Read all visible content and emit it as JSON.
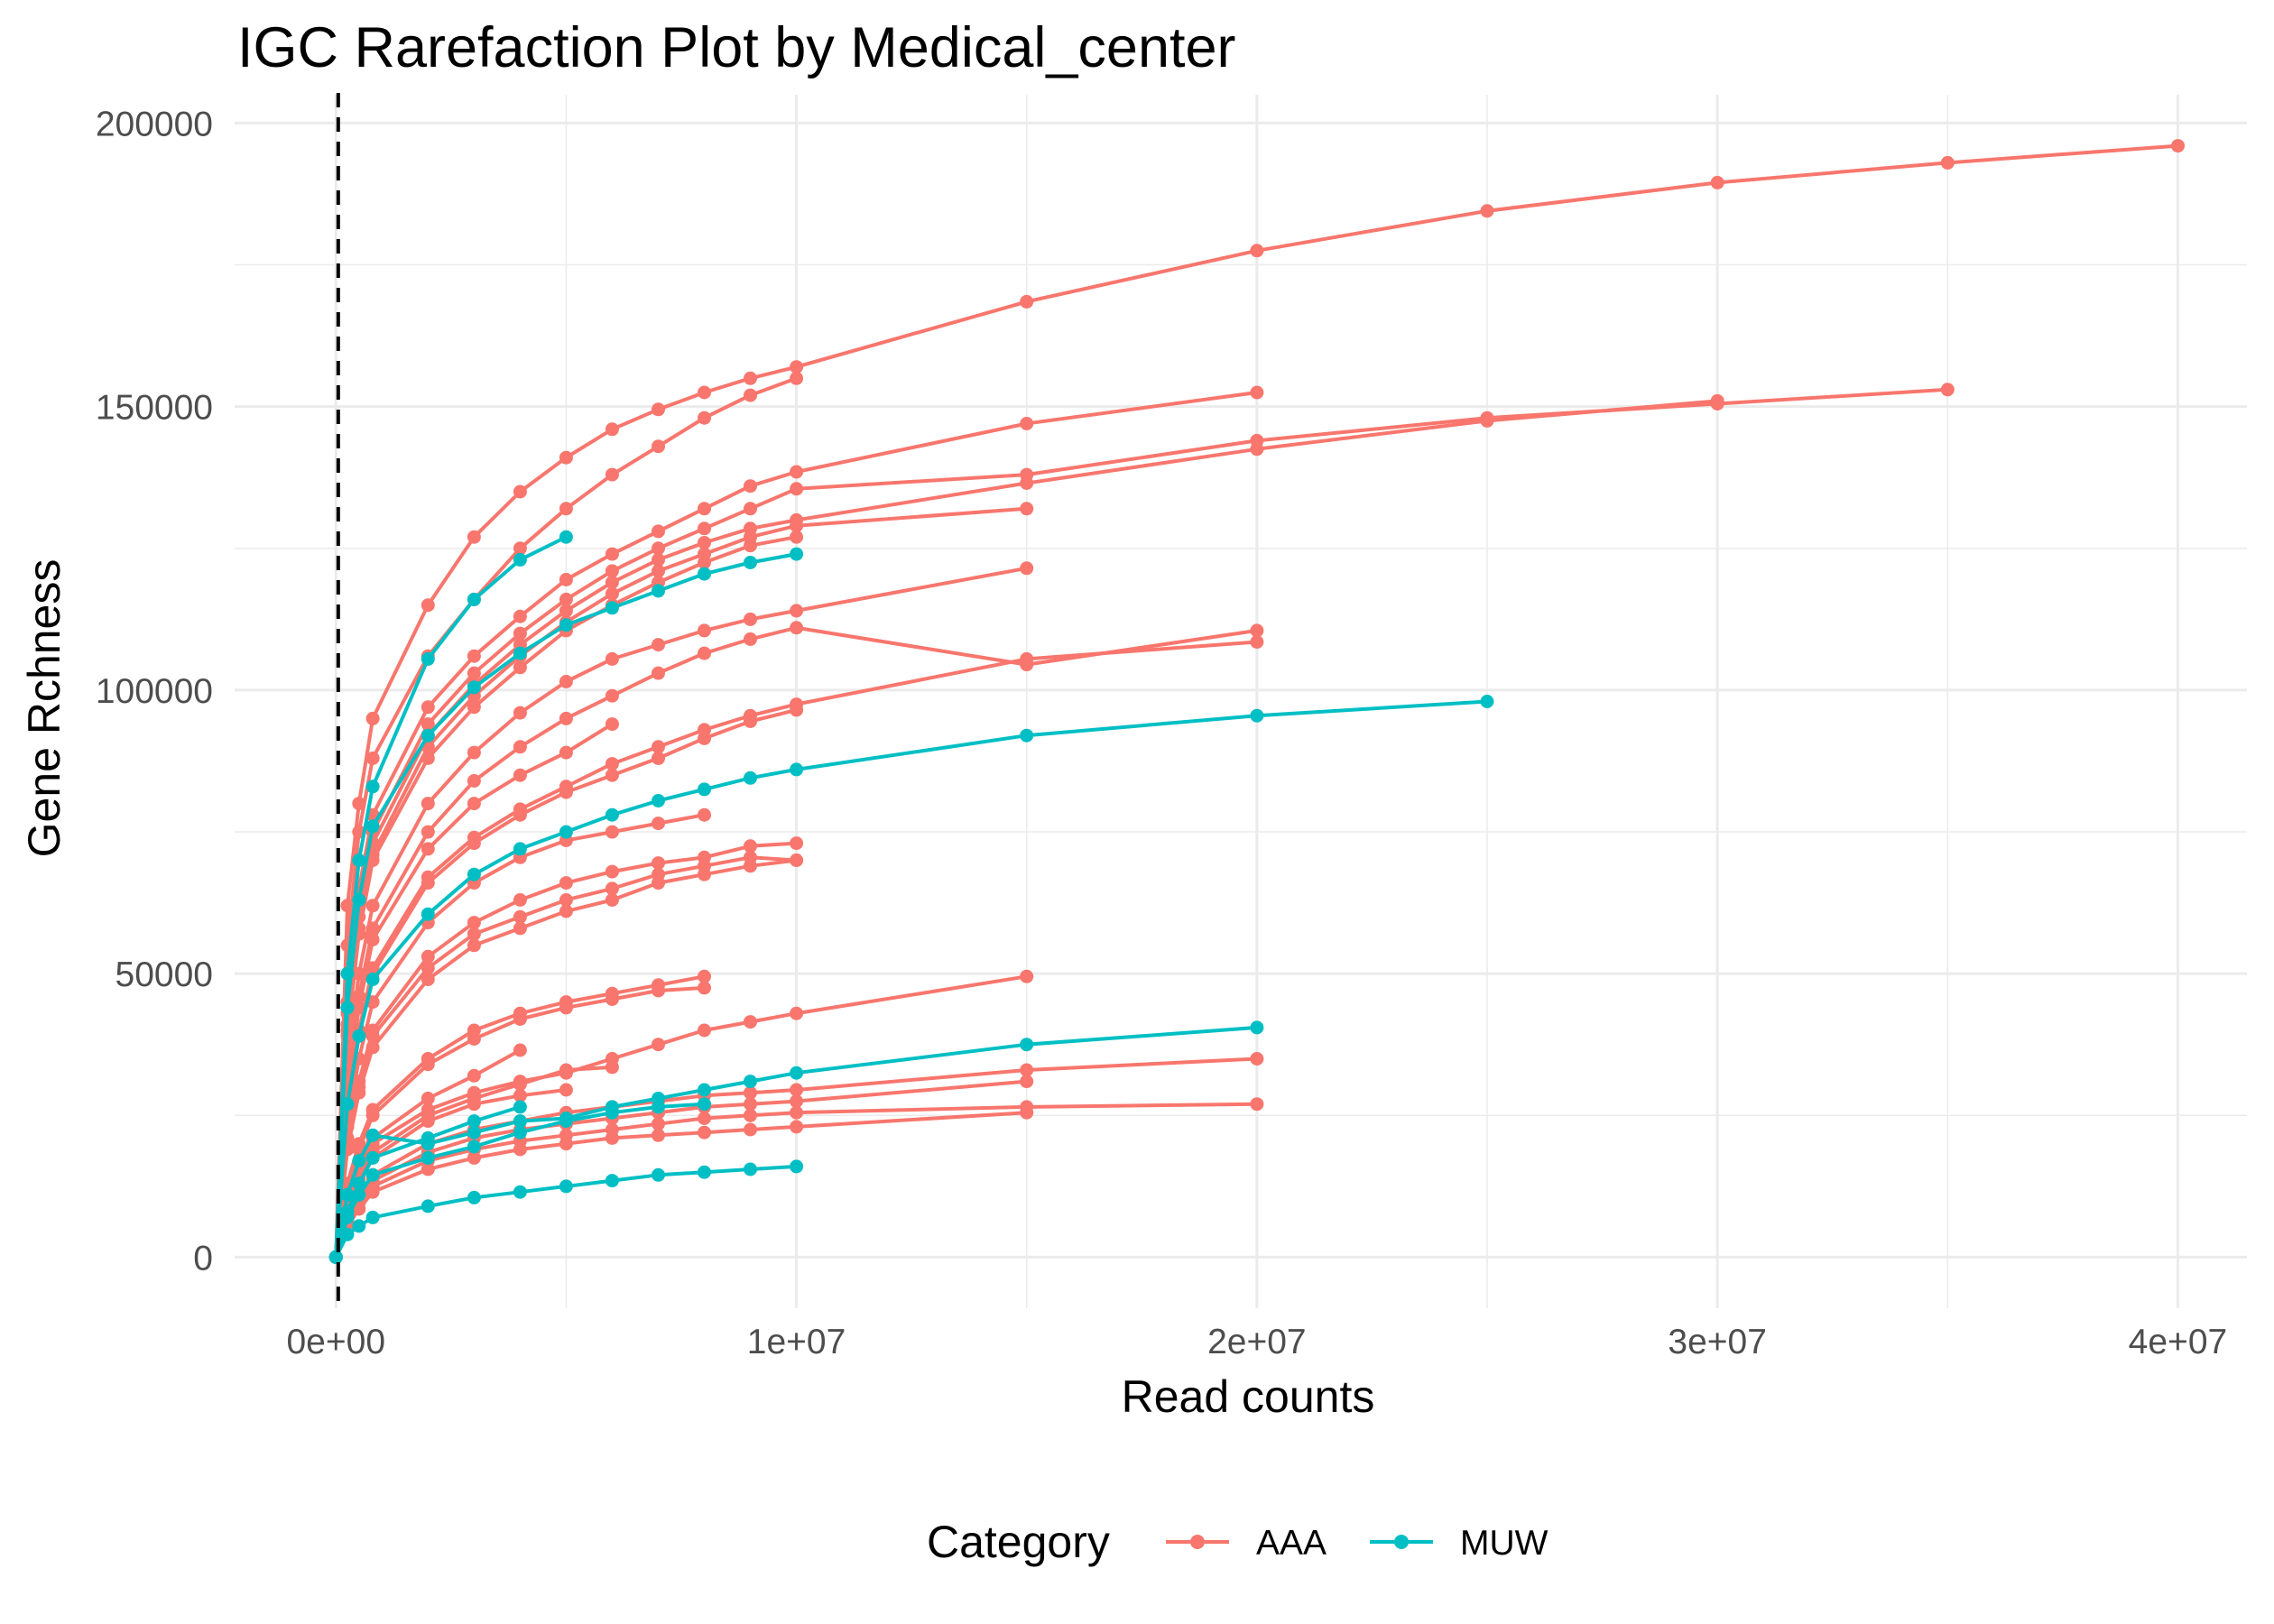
{
  "chart_data": {
    "type": "line",
    "title": "IGC Rarefaction Plot by Medical_center",
    "xlabel": "Read counts",
    "ylabel": "Gene Rchness",
    "xlim": [
      -2200000,
      41500000
    ],
    "ylim": [
      -9000,
      205000
    ],
    "x_ticks": [
      0,
      10000000,
      20000000,
      30000000,
      40000000
    ],
    "x_tick_labels": [
      "0e+00",
      "1e+07",
      "2e+07",
      "3e+07",
      "4e+07"
    ],
    "y_ticks": [
      0,
      50000,
      100000,
      150000,
      200000
    ],
    "y_tick_labels": [
      "0",
      "50000",
      "100000",
      "150000",
      "200000"
    ],
    "reference_line_x": 50000,
    "grid": true,
    "legend": {
      "title": "Category",
      "position": "bottom",
      "entries": [
        {
          "label": "AAA",
          "color": "#F8766D"
        },
        {
          "label": "MUW",
          "color": "#00BFC4"
        }
      ]
    },
    "series": [
      {
        "group": "AAA",
        "x": [
          0,
          250000,
          500000,
          800000,
          2000000,
          3000000,
          4000000,
          5000000,
          6000000,
          7000000,
          8000000,
          9000000,
          10000000,
          15000000,
          20000000,
          25000000,
          30000000,
          35000000,
          40000000
        ],
        "y": [
          0,
          62000,
          80000,
          95000,
          115000,
          127000,
          135000,
          141000,
          146000,
          149500,
          152500,
          155000,
          157000,
          168500,
          177500,
          184500,
          189500,
          193000,
          196000
        ]
      },
      {
        "group": "AAA",
        "x": [
          0,
          250000,
          500000,
          800000,
          2000000,
          3000000,
          4000000,
          5000000,
          6000000,
          7000000,
          8000000,
          9000000,
          10000000
        ],
        "y": [
          0,
          55000,
          75000,
          88000,
          106000,
          116000,
          125000,
          132000,
          138000,
          143000,
          148000,
          152000,
          155000
        ]
      },
      {
        "group": "AAA",
        "x": [
          0,
          250000,
          500000,
          800000,
          2000000,
          3000000,
          4000000,
          5000000,
          6000000,
          7000000,
          8000000,
          9000000,
          10000000,
          15000000,
          20000000
        ],
        "y": [
          0,
          45000,
          65000,
          78000,
          97000,
          106000,
          113000,
          119500,
          124000,
          128000,
          132000,
          136000,
          138500,
          147000,
          152500
        ]
      },
      {
        "group": "AAA",
        "x": [
          0,
          250000,
          500000,
          800000,
          2000000,
          3000000,
          4000000,
          5000000,
          6000000,
          7000000,
          8000000,
          9000000,
          10000000,
          15000000,
          20000000,
          25000000,
          30000000,
          35000000
        ],
        "y": [
          0,
          43000,
          62000,
          75000,
          94000,
          103000,
          110000,
          116000,
          121000,
          125000,
          128500,
          132000,
          135500,
          138000,
          144000,
          148000,
          150500,
          153000
        ]
      },
      {
        "group": "AAA",
        "x": [
          0,
          250000,
          500000,
          800000,
          2000000,
          3000000,
          4000000,
          5000000,
          6000000,
          7000000,
          8000000,
          9000000,
          10000000,
          15000000,
          20000000,
          25000000,
          30000000
        ],
        "y": [
          0,
          41000,
          60000,
          73000,
          92000,
          101000,
          108000,
          114000,
          119000,
          123000,
          126000,
          128500,
          130000,
          136500,
          142500,
          147500,
          151000
        ]
      },
      {
        "group": "AAA",
        "x": [
          0,
          250000,
          500000,
          800000,
          2000000,
          3000000,
          4000000,
          5000000,
          6000000,
          7000000,
          8000000,
          9000000,
          10000000,
          15000000
        ],
        "y": [
          0,
          40000,
          58000,
          71000,
          90000,
          99000,
          106000,
          112000,
          117000,
          121000,
          124000,
          127000,
          129000,
          132000
        ]
      },
      {
        "group": "AAA",
        "x": [
          0,
          250000,
          500000,
          800000,
          2000000,
          3000000,
          4000000,
          5000000,
          6000000,
          7000000,
          8000000,
          9000000,
          10000000
        ],
        "y": [
          0,
          39000,
          57000,
          70000,
          88000,
          97000,
          104000,
          110500,
          115000,
          119000,
          122500,
          125500,
          127000
        ]
      },
      {
        "group": "AAA",
        "x": [
          0,
          250000,
          500000,
          800000,
          2000000,
          3000000,
          4000000,
          5000000,
          6000000,
          7000000,
          8000000,
          9000000,
          10000000,
          15000000
        ],
        "y": [
          0,
          34000,
          50000,
          62000,
          80000,
          89000,
          96000,
          101500,
          105500,
          108000,
          110500,
          112500,
          114000,
          121500
        ]
      },
      {
        "group": "AAA",
        "x": [
          0,
          250000,
          500000,
          800000,
          2000000,
          3000000,
          4000000,
          5000000,
          6000000,
          7000000,
          8000000,
          9000000,
          10000000,
          15000000,
          20000000
        ],
        "y": [
          0,
          31000,
          46000,
          58000,
          75000,
          84000,
          90000,
          95000,
          99000,
          103000,
          106500,
          109000,
          111000,
          104500,
          110500
        ]
      },
      {
        "group": "AAA",
        "x": [
          0,
          250000,
          500000,
          800000,
          2000000,
          3000000,
          4000000,
          5000000,
          6000000
        ],
        "y": [
          0,
          29000,
          44000,
          56000,
          72000,
          80000,
          85000,
          89000,
          94000
        ]
      },
      {
        "group": "AAA",
        "x": [
          0,
          250000,
          500000,
          800000,
          2000000,
          3000000,
          4000000,
          5000000,
          6000000,
          7000000,
          8000000,
          9000000,
          10000000,
          15000000,
          20000000
        ],
        "y": [
          0,
          27000,
          40000,
          51000,
          67000,
          74000,
          79000,
          83000,
          87000,
          90000,
          93000,
          95500,
          97500,
          105500,
          108500
        ]
      },
      {
        "group": "AAA",
        "x": [
          0,
          250000,
          500000,
          800000,
          2000000,
          3000000,
          4000000,
          5000000,
          6000000,
          7000000,
          8000000,
          9000000,
          10000000
        ],
        "y": [
          0,
          26000,
          39000,
          50000,
          66000,
          73000,
          78000,
          82000,
          85000,
          88000,
          91500,
          94500,
          96500
        ]
      },
      {
        "group": "AAA",
        "x": [
          0,
          250000,
          500000,
          800000,
          2000000,
          3000000,
          4000000,
          5000000,
          6000000,
          7000000,
          8000000
        ],
        "y": [
          0,
          23000,
          35000,
          45000,
          59000,
          66000,
          70500,
          73500,
          75000,
          76500,
          78000
        ]
      },
      {
        "group": "AAA",
        "x": [
          0,
          250000,
          500000,
          800000,
          2000000,
          3000000,
          4000000,
          5000000,
          6000000,
          7000000,
          8000000,
          9000000,
          10000000
        ],
        "y": [
          0,
          21000,
          31000,
          40000,
          53000,
          59000,
          63000,
          66000,
          68000,
          69500,
          70500,
          72500,
          73000
        ]
      },
      {
        "group": "AAA",
        "x": [
          0,
          250000,
          500000,
          800000,
          2000000,
          3000000,
          4000000,
          5000000,
          6000000,
          7000000,
          8000000,
          9000000,
          10000000
        ],
        "y": [
          0,
          20000,
          30000,
          39000,
          51000,
          57000,
          60000,
          63000,
          65000,
          67500,
          69000,
          70500,
          70000
        ]
      },
      {
        "group": "AAA",
        "x": [
          0,
          250000,
          500000,
          800000,
          2000000,
          3000000,
          4000000,
          5000000,
          6000000,
          7000000,
          8000000,
          9000000,
          10000000
        ],
        "y": [
          0,
          19000,
          29000,
          37000,
          49000,
          55000,
          58000,
          61000,
          63000,
          66000,
          67500,
          69000,
          70000
        ]
      },
      {
        "group": "AAA",
        "x": [
          0,
          250000,
          500000,
          800000,
          2000000,
          3000000,
          4000000,
          5000000,
          6000000,
          7000000,
          8000000
        ],
        "y": [
          0,
          13000,
          20000,
          26000,
          35000,
          40000,
          43000,
          45000,
          46500,
          48000,
          49500
        ]
      },
      {
        "group": "AAA",
        "x": [
          0,
          250000,
          500000,
          800000,
          2000000,
          3000000,
          4000000,
          5000000,
          6000000,
          7000000,
          8000000
        ],
        "y": [
          0,
          12500,
          19000,
          25000,
          34000,
          38500,
          42000,
          44000,
          45500,
          47000,
          47500
        ]
      },
      {
        "group": "AAA",
        "x": [
          0,
          250000,
          500000,
          800000,
          2000000,
          3000000,
          4000000,
          5000000,
          6000000,
          7000000,
          8000000,
          9000000,
          10000000,
          15000000
        ],
        "y": [
          0,
          10000,
          15000,
          20000,
          26000,
          29000,
          31000,
          32500,
          35000,
          37500,
          40000,
          41500,
          43000,
          49500
        ]
      },
      {
        "group": "AAA",
        "x": [
          0,
          250000,
          500000,
          800000,
          2000000,
          3000000,
          4000000
        ],
        "y": [
          0,
          10500,
          16000,
          21000,
          28000,
          32000,
          36500
        ]
      },
      {
        "group": "AAA",
        "x": [
          0,
          250000,
          500000,
          800000,
          2000000,
          3000000,
          4000000,
          5000000,
          6000000
        ],
        "y": [
          0,
          9000,
          14000,
          18500,
          25000,
          28000,
          30500,
          33000,
          33500
        ]
      },
      {
        "group": "AAA",
        "x": [
          0,
          250000,
          500000,
          800000,
          2000000,
          3000000,
          4000000,
          5000000
        ],
        "y": [
          0,
          8500,
          13000,
          17500,
          24000,
          27000,
          28500,
          29500
        ]
      },
      {
        "group": "AAA",
        "x": [
          0,
          250000,
          500000,
          800000,
          2000000,
          3000000,
          4000000,
          5000000,
          6000000,
          7000000,
          8000000,
          9000000,
          10000000,
          15000000,
          20000000
        ],
        "y": [
          0,
          7000,
          11000,
          14500,
          20000,
          22500,
          24000,
          25500,
          26500,
          27500,
          28500,
          29000,
          29500,
          33000,
          35000
        ]
      },
      {
        "group": "AAA",
        "x": [
          0,
          250000,
          500000,
          800000,
          2000000,
          3000000,
          4000000,
          5000000,
          6000000,
          7000000,
          8000000,
          9000000,
          10000000,
          15000000
        ],
        "y": [
          0,
          6500,
          10000,
          13500,
          18500,
          21000,
          22500,
          23500,
          24500,
          25500,
          26500,
          27000,
          27500,
          31000
        ]
      },
      {
        "group": "AAA",
        "x": [
          0,
          250000,
          500000,
          800000,
          2000000,
          3000000,
          4000000,
          5000000,
          6000000,
          7000000,
          8000000,
          9000000,
          10000000,
          15000000,
          20000000
        ],
        "y": [
          0,
          6000,
          9500,
          12500,
          17000,
          19000,
          20500,
          21500,
          22500,
          23500,
          24500,
          25000,
          25500,
          26500,
          27000
        ]
      },
      {
        "group": "AAA",
        "x": [
          0,
          250000,
          500000,
          800000,
          2000000,
          3000000,
          4000000,
          5000000,
          6000000,
          7000000,
          8000000,
          9000000,
          10000000,
          15000000
        ],
        "y": [
          0,
          5500,
          8500,
          11500,
          15500,
          17500,
          19000,
          20000,
          21000,
          21500,
          22000,
          22500,
          23000,
          25500
        ]
      },
      {
        "group": "MUW",
        "x": [
          0,
          250000,
          500000,
          800000,
          2000000,
          3000000,
          4000000,
          5000000
        ],
        "y": [
          0,
          50000,
          70000,
          83000,
          105500,
          116000,
          123000,
          127000
        ]
      },
      {
        "group": "MUW",
        "x": [
          0,
          250000,
          500000,
          800000,
          2000000,
          3000000,
          4000000,
          5000000,
          6000000,
          7000000,
          8000000,
          9000000,
          10000000
        ],
        "y": [
          0,
          44000,
          63000,
          76000,
          92000,
          100500,
          106500,
          111500,
          114500,
          117500,
          120500,
          122500,
          124000
        ]
      },
      {
        "group": "MUW",
        "x": [
          0,
          250000,
          500000,
          800000,
          2000000,
          3000000,
          4000000,
          5000000,
          6000000,
          7000000,
          8000000,
          9000000,
          10000000,
          15000000,
          20000000,
          25000000
        ],
        "y": [
          0,
          27000,
          39000,
          49000,
          60500,
          67500,
          72000,
          75000,
          78000,
          80500,
          82500,
          84500,
          86000,
          92000,
          95500,
          98000
        ]
      },
      {
        "group": "MUW",
        "x": [
          0,
          250000,
          500000,
          800000,
          2000000,
          3000000,
          4000000,
          5000000,
          6000000,
          7000000,
          8000000,
          9000000,
          10000000,
          15000000,
          20000000
        ],
        "y": [
          0,
          11000,
          17000,
          21500,
          20000,
          22000,
          24000,
          24500,
          26500,
          28000,
          29500,
          31000,
          32500,
          37500,
          40500
        ]
      },
      {
        "group": "MUW",
        "x": [
          0,
          250000,
          500000,
          800000,
          2000000,
          3000000,
          4000000
        ],
        "y": [
          0,
          8000,
          13000,
          17500,
          21000,
          24000,
          26500
        ]
      },
      {
        "group": "MUW",
        "x": [
          0,
          250000,
          500000,
          800000,
          2000000,
          3000000,
          4000000,
          5000000,
          6000000,
          7000000,
          8000000
        ],
        "y": [
          0,
          7000,
          11000,
          14500,
          17500,
          19500,
          22000,
          24000,
          25500,
          26500,
          27000
        ]
      },
      {
        "group": "MUW",
        "x": [
          0,
          250000,
          500000,
          800000,
          2000000,
          3000000,
          4000000,
          5000000,
          6000000,
          7000000,
          8000000,
          9000000,
          10000000
        ],
        "y": [
          0,
          4000,
          5500,
          7000,
          9000,
          10500,
          11500,
          12500,
          13500,
          14500,
          15000,
          15500,
          16000
        ]
      }
    ]
  }
}
